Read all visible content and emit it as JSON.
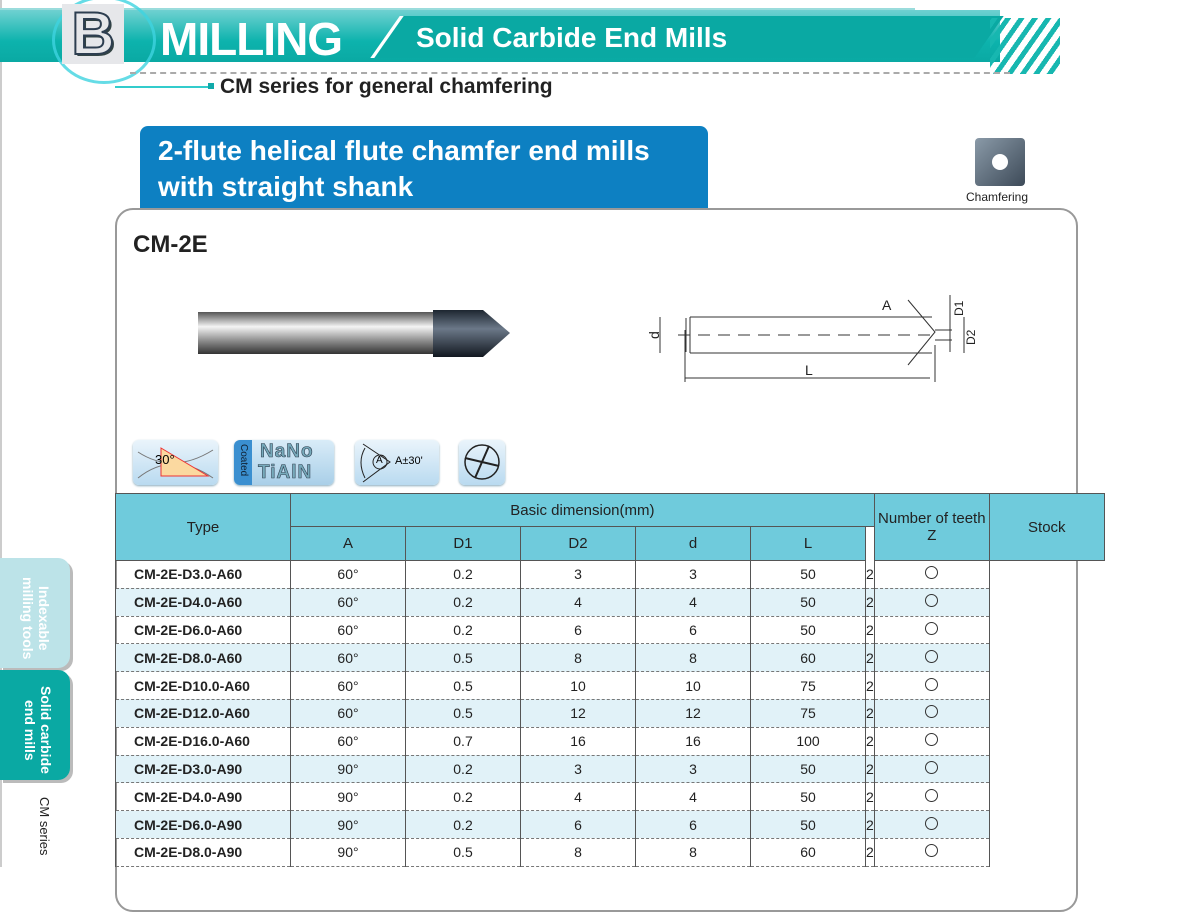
{
  "header": {
    "letter": "B",
    "section": "MILLING",
    "subtitle": "Solid Carbide End Mills",
    "series": "CM series for general chamfering"
  },
  "product": {
    "title_line1": "2-flute helical flute chamfer end mills",
    "title_line2": "with straight shank",
    "model": "CM-2E",
    "application_label": "Chamfering"
  },
  "diagram_labels": {
    "A": "A",
    "D1": "D1",
    "D2": "D2",
    "d": "d",
    "L": "L"
  },
  "features": {
    "helix": "30°",
    "coating_tag": "Coated",
    "coating_line1": "NaNo",
    "coating_line2": "TiAlN",
    "angle_tol": "A±30'",
    "angle_symbol": "A"
  },
  "side_tabs": {
    "tab1": "Indexable milling tools",
    "tab2": "Solid carbide end mills",
    "current": "CM series"
  },
  "table": {
    "headers": {
      "type": "Type",
      "basic": "Basic dimension(mm)",
      "A": "A",
      "D1": "D1",
      "D2": "D2",
      "d": "d",
      "L": "L",
      "teeth": "Number of teeth Z",
      "stock": "Stock"
    },
    "rows": [
      {
        "type": "CM-2E-D3.0-A60",
        "A": "60°",
        "D1": "0.2",
        "D2": "3",
        "d": "3",
        "L": "50",
        "Z": "2",
        "stock": "○"
      },
      {
        "type": "CM-2E-D4.0-A60",
        "A": "60°",
        "D1": "0.2",
        "D2": "4",
        "d": "4",
        "L": "50",
        "Z": "2",
        "stock": "○"
      },
      {
        "type": "CM-2E-D6.0-A60",
        "A": "60°",
        "D1": "0.2",
        "D2": "6",
        "d": "6",
        "L": "50",
        "Z": "2",
        "stock": "○"
      },
      {
        "type": "CM-2E-D8.0-A60",
        "A": "60°",
        "D1": "0.5",
        "D2": "8",
        "d": "8",
        "L": "60",
        "Z": "2",
        "stock": "○"
      },
      {
        "type": "CM-2E-D10.0-A60",
        "A": "60°",
        "D1": "0.5",
        "D2": "10",
        "d": "10",
        "L": "75",
        "Z": "2",
        "stock": "○"
      },
      {
        "type": "CM-2E-D12.0-A60",
        "A": "60°",
        "D1": "0.5",
        "D2": "12",
        "d": "12",
        "L": "75",
        "Z": "2",
        "stock": "○"
      },
      {
        "type": "CM-2E-D16.0-A60",
        "A": "60°",
        "D1": "0.7",
        "D2": "16",
        "d": "16",
        "L": "100",
        "Z": "2",
        "stock": "○"
      },
      {
        "type": "CM-2E-D3.0-A90",
        "A": "90°",
        "D1": "0.2",
        "D2": "3",
        "d": "3",
        "L": "50",
        "Z": "2",
        "stock": "○"
      },
      {
        "type": "CM-2E-D4.0-A90",
        "A": "90°",
        "D1": "0.2",
        "D2": "4",
        "d": "4",
        "L": "50",
        "Z": "2",
        "stock": "○"
      },
      {
        "type": "CM-2E-D6.0-A90",
        "A": "90°",
        "D1": "0.2",
        "D2": "6",
        "d": "6",
        "L": "50",
        "Z": "2",
        "stock": "○"
      },
      {
        "type": "CM-2E-D8.0-A90",
        "A": "90°",
        "D1": "0.5",
        "D2": "8",
        "d": "8",
        "L": "60",
        "Z": "2",
        "stock": "○"
      }
    ]
  },
  "colors": {
    "brand_teal": "#0aa9a3",
    "title_blue": "#0d80c2",
    "table_header": "#6fcbdc",
    "alt_row": "#e1f2f8"
  }
}
